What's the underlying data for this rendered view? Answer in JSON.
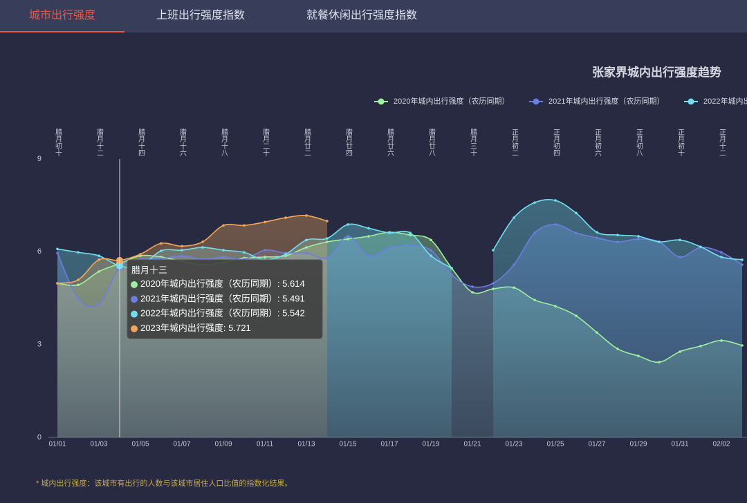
{
  "tabs": [
    "城市出行强度",
    "上班出行强度指数",
    "就餐休闲出行强度指数"
  ],
  "footnote": "* 城内出行强度：该城市有出行的人数与该城市居住人口比值的指数化结果。",
  "tooltip": {
    "title": "腊月十三",
    "separator": ": "
  },
  "chart_data": {
    "type": "line",
    "title": "张家界城内出行强度趋势",
    "categories": [
      "01/01",
      null,
      "01/03",
      null,
      "01/05",
      null,
      "01/07",
      null,
      "01/09",
      null,
      "01/11",
      null,
      "01/13",
      null,
      "01/15",
      null,
      "01/17",
      null,
      "01/19",
      null,
      "01/21",
      null,
      "01/23",
      null,
      "01/25",
      null,
      "01/27",
      null,
      "01/29",
      null,
      "01/31",
      null,
      "02/02",
      null
    ],
    "lunar_labels": [
      "腊月初十",
      null,
      "腊月十二",
      null,
      "腊月十四",
      null,
      "腊月十六",
      null,
      "腊月十八",
      null,
      "腊月二十",
      null,
      "腊月廿二",
      null,
      "腊月廿四",
      null,
      "腊月廿六",
      null,
      "腊月廿八",
      null,
      "腊月三十",
      null,
      "正月初二",
      null,
      "正月初四",
      null,
      "正月初六",
      null,
      "正月初八",
      null,
      "正月初十",
      null,
      "正月十二",
      null
    ],
    "ylim": [
      0,
      9
    ],
    "yticks": [
      0,
      3,
      6,
      9
    ],
    "series": [
      {
        "name": "2020年城内出行强度（农历同期）",
        "color": "#9ef0a0",
        "values": [
          4.98,
          4.93,
          5.36,
          5.614,
          5.87,
          5.83,
          5.69,
          5.58,
          5.65,
          5.8,
          5.83,
          5.87,
          6.14,
          6.32,
          6.41,
          6.5,
          6.63,
          6.54,
          6.38,
          5.47,
          4.69,
          4.8,
          4.84,
          4.44,
          4.24,
          3.93,
          3.39,
          2.86,
          2.63,
          2.43,
          2.77,
          2.95,
          3.13,
          2.97
        ]
      },
      {
        "name": "2021年城内出行强度（农历同期）",
        "color": "#6b7fe0",
        "values": [
          5.96,
          4.49,
          4.31,
          5.491,
          5.76,
          5.78,
          5.87,
          5.76,
          5.83,
          5.76,
          6.05,
          5.96,
          5.96,
          5.8,
          6.5,
          5.87,
          6.14,
          6.21,
          6.05,
          5.25,
          4.87,
          4.98,
          5.58,
          6.61,
          6.88,
          6.61,
          6.45,
          6.32,
          6.41,
          6.32,
          5.83,
          6.14,
          5.98,
          5.58
        ]
      },
      {
        "name": "2022年城内出行强度（农历同期）",
        "color": "#6fe0f0",
        "values": [
          6.09,
          5.98,
          5.87,
          5.542,
          5.54,
          6.03,
          6.05,
          6.14,
          6.05,
          5.98,
          5.74,
          5.92,
          6.38,
          6.43,
          6.88,
          6.76,
          6.61,
          6.61,
          5.87,
          5.47,
          null,
          6.05,
          7.1,
          7.59,
          7.66,
          7.25,
          6.63,
          6.54,
          6.5,
          6.32,
          6.38,
          6.16,
          5.83,
          5.74
        ]
      },
      {
        "name": "2023年城内出行强度",
        "color": "#f2a65a",
        "values": [
          4.98,
          5.09,
          5.74,
          5.721,
          5.92,
          6.27,
          6.18,
          6.32,
          6.85,
          6.85,
          6.96,
          7.1,
          7.17,
          6.99,
          null,
          null,
          null,
          null,
          null,
          null,
          null,
          null,
          null,
          null,
          null,
          null,
          null,
          null,
          null,
          null,
          null,
          null,
          null,
          null
        ]
      }
    ]
  }
}
